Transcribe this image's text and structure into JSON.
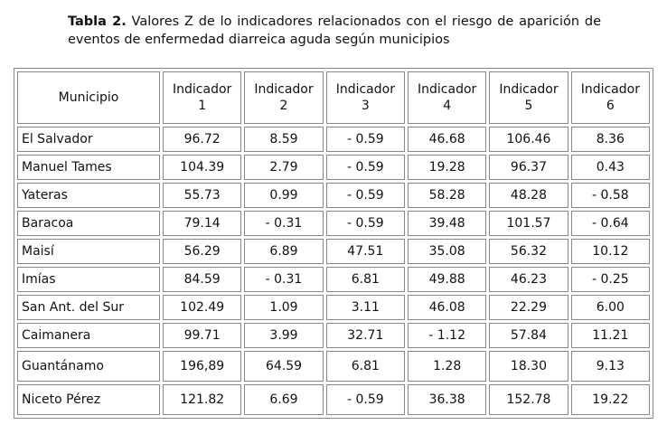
{
  "title": {
    "label": "Tabla 2.",
    "text": "Valores Z de lo indicadores relacionados con el riesgo de aparición de eventos de enfermedad diarreica aguda según municipios"
  },
  "table": {
    "header": [
      "Municipio",
      "Indicador\n1",
      "Indicador\n2",
      "Indicador\n3",
      "Indicador\n4",
      "Indicador\n5",
      "Indicador\n6"
    ],
    "rows": [
      [
        "El Salvador",
        "96.72",
        "8.59",
        "- 0.59",
        "46.68",
        "106.46",
        "8.36"
      ],
      [
        "Manuel Tames",
        "104.39",
        "2.79",
        "- 0.59",
        "19.28",
        "96.37",
        "0.43"
      ],
      [
        "Yateras",
        "55.73",
        "0.99",
        "- 0.59",
        "58.28",
        "48.28",
        "- 0.58"
      ],
      [
        "Baracoa",
        "79.14",
        "- 0.31",
        "- 0.59",
        "39.48",
        "101.57",
        "- 0.64"
      ],
      [
        "Maisí",
        "56.29",
        "6.89",
        "47.51",
        "35.08",
        "56.32",
        "10.12"
      ],
      [
        "Imías",
        "84.59",
        "- 0.31",
        "6.81",
        "49.88",
        "46.23",
        "- 0.25"
      ],
      [
        "San Ant. del Sur",
        "102.49",
        "1.09",
        "3.11",
        "46.08",
        "22.29",
        "6.00"
      ],
      [
        "Caimanera",
        "99.71",
        "3.99",
        "32.71",
        "- 1.12",
        "57.84",
        "11.21"
      ],
      [
        "Guantánamo",
        "196,89",
        "64.59",
        "6.81",
        "1.28",
        "18.30",
        "9.13"
      ],
      [
        "Niceto Pérez",
        "121.82",
        "6.69",
        "- 0.59",
        "36.38",
        "152.78",
        "19.22"
      ]
    ]
  }
}
